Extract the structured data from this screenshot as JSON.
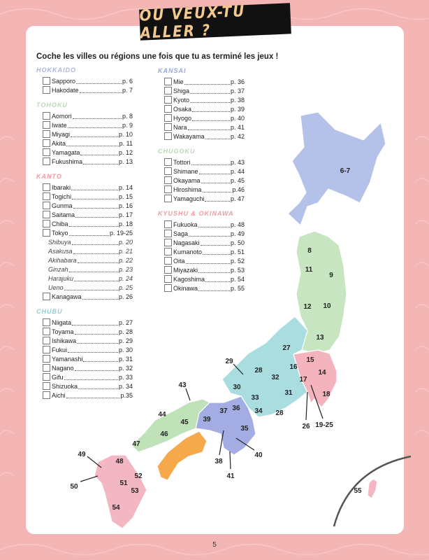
{
  "title": "OÙ VEUX-TU ALLER ?",
  "instruction": "Coche les villes ou régions une fois que tu as terminé les jeux !",
  "page_number": "5",
  "colors": {
    "hokkaido": "#b4c1e8",
    "tohoku": "#c6e5c0",
    "kanto": "#f3b4bd",
    "chubu": "#a9dde0",
    "kansai": "#a3ace3",
    "chugoku": "#bfe2b8",
    "shikoku": "#f5a94a",
    "kyushu": "#f3b7c4",
    "background": "#f4b6b4"
  },
  "sections": [
    {
      "title": "HOKKAIDO",
      "color": "#a9b7dc",
      "items": [
        {
          "name": "Sapporo",
          "page": "p. 6"
        },
        {
          "name": "Hakodate",
          "page": "p. 7"
        }
      ]
    },
    {
      "title": "TOHOKU",
      "color": "#b6dcae",
      "items": [
        {
          "name": "Aomori",
          "page": "p. 8"
        },
        {
          "name": "Iwate",
          "page": "p. 9"
        },
        {
          "name": "Miyagi",
          "page": "p. 10"
        },
        {
          "name": "Akita",
          "page": "p. 11"
        },
        {
          "name": "Yamagata",
          "page": "p. 12"
        },
        {
          "name": "Fukushima",
          "page": "p. 13"
        }
      ]
    },
    {
      "title": "KANTO",
      "color": "#ef9aa5",
      "items": [
        {
          "name": "Ibaraki",
          "page": "p. 14"
        },
        {
          "name": "Togichi",
          "page": "p. 15"
        },
        {
          "name": "Gunma",
          "page": "p. 16"
        },
        {
          "name": "Saitama",
          "page": "p. 17"
        },
        {
          "name": "Chiba",
          "page": "p. 18"
        },
        {
          "name": "Tokyo",
          "page": "p. 19-25"
        }
      ],
      "subitems": [
        {
          "name": "Shibuya",
          "page": "p. 20"
        },
        {
          "name": "Asakusa",
          "page": "p. 21"
        },
        {
          "name": "Akihabara",
          "page": "p. 22"
        },
        {
          "name": "Ginzah",
          "page": "p. 23"
        },
        {
          "name": "Harajuku",
          "page": "p. 24"
        },
        {
          "name": "Ueno",
          "page": "p. 25"
        }
      ],
      "last": {
        "name": "Kanagawa",
        "page": "p. 26"
      }
    },
    {
      "title": "CHUBU",
      "color": "#8fcfd2",
      "items": [
        {
          "name": "Niigata",
          "page": "p. 27"
        },
        {
          "name": "Toyama",
          "page": "p. 28"
        },
        {
          "name": "Ishikawa",
          "page": "p. 29"
        },
        {
          "name": "Fukui",
          "page": "p. 30"
        },
        {
          "name": "Yamanashi",
          "page": "p. 31"
        },
        {
          "name": "Nagano",
          "page": "p. 32"
        },
        {
          "name": "Gifu",
          "page": "p. 33"
        },
        {
          "name": "Shizuoka",
          "page": "p. 34"
        },
        {
          "name": "Aichi",
          "page": "p.35"
        }
      ]
    },
    {
      "title": "KANSAI",
      "color": "#9aa6d6",
      "items": [
        {
          "name": "Mie",
          "page": "p. 36"
        },
        {
          "name": "Shiga",
          "page": "p. 37"
        },
        {
          "name": "Kyoto",
          "page": "p. 38"
        },
        {
          "name": "Osaka",
          "page": "p. 39"
        },
        {
          "name": "Hyogo",
          "page": "p. 40"
        },
        {
          "name": "Nara",
          "page": "p. 41"
        },
        {
          "name": "Wakayama",
          "page": "p. 42"
        }
      ]
    },
    {
      "title": "CHUGOKU",
      "color": "#b6dcae",
      "items": [
        {
          "name": "Tottori",
          "page": "p. 43"
        },
        {
          "name": "Shimane",
          "page": "p. 44"
        },
        {
          "name": "Okayama",
          "page": "p. 45"
        },
        {
          "name": "Hiroshima",
          "page": "p.46"
        },
        {
          "name": "Yamaguchi",
          "page": "p. 47"
        }
      ]
    },
    {
      "title": "KYUSHU & OKINAWA",
      "color": "#ef9aa5",
      "items": [
        {
          "name": "Fukuoka",
          "page": "p. 48"
        },
        {
          "name": "Saga",
          "page": "p. 49"
        },
        {
          "name": "Nagasaki",
          "page": "p. 50"
        },
        {
          "name": "Kumanoto",
          "page": "p. 51"
        },
        {
          "name": "Oita",
          "page": "p. 52"
        },
        {
          "name": "Miyazaki",
          "page": "p. 53"
        },
        {
          "name": "Kagoshima",
          "page": "p. 54"
        },
        {
          "name": "Okinawa",
          "page": "p. 55"
        }
      ]
    }
  ],
  "map_labels": [
    "6-7",
    "8",
    "11",
    "9",
    "12",
    "10",
    "13",
    "27",
    "15",
    "16",
    "14",
    "17",
    "18",
    "19-25",
    "26",
    "29",
    "28",
    "32",
    "30",
    "33",
    "31",
    "34",
    "28",
    "36",
    "37",
    "39",
    "35",
    "38",
    "40",
    "41",
    "43",
    "44",
    "45",
    "46",
    "47",
    "49",
    "48",
    "50",
    "51",
    "52",
    "53",
    "54",
    "55"
  ]
}
